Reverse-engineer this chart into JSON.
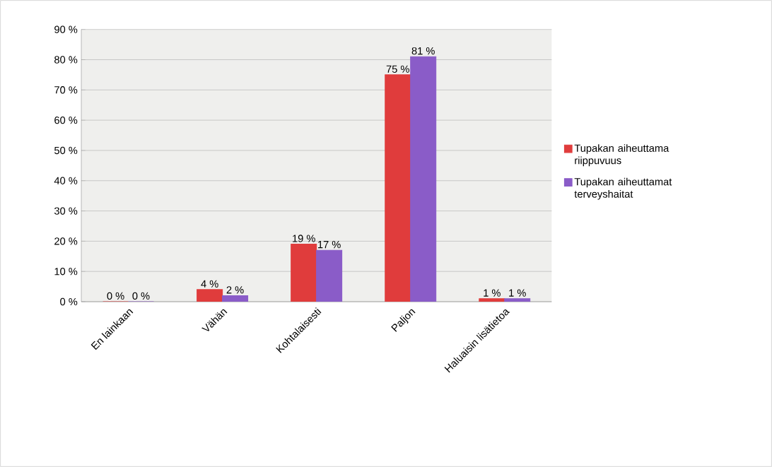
{
  "chart_data": {
    "type": "bar",
    "categories": [
      "En lainkaan",
      "Vähän",
      "Kohtalaisesti",
      "Paljon",
      "Haluaisin lisätietoa"
    ],
    "series": [
      {
        "name": "Tupakan aiheuttama riippuvuus",
        "color": "#e03c3c",
        "values": [
          0,
          4,
          19,
          75,
          1
        ],
        "value_labels": [
          "0 %",
          "4 %",
          "19 %",
          "75 %",
          "1 %"
        ]
      },
      {
        "name": "Tupakan aiheuttamat terveyshaitat",
        "color": "#8a5cc8",
        "values": [
          0,
          2,
          17,
          81,
          1
        ],
        "value_labels": [
          "0 %",
          "2 %",
          "17 %",
          "81 %",
          "1 %"
        ]
      }
    ],
    "ylim": [
      0,
      90
    ],
    "yticks": [
      {
        "value": 0,
        "label": "0 %"
      },
      {
        "value": 10,
        "label": "10 %"
      },
      {
        "value": 20,
        "label": "20 %"
      },
      {
        "value": 30,
        "label": "30 %"
      },
      {
        "value": 40,
        "label": "40 %"
      },
      {
        "value": 50,
        "label": "50 %"
      },
      {
        "value": 60,
        "label": "60 %"
      },
      {
        "value": 70,
        "label": "70 %"
      },
      {
        "value": 80,
        "label": "80 %"
      },
      {
        "value": 90,
        "label": "90 %"
      }
    ],
    "grid": "y",
    "legend": "right"
  }
}
